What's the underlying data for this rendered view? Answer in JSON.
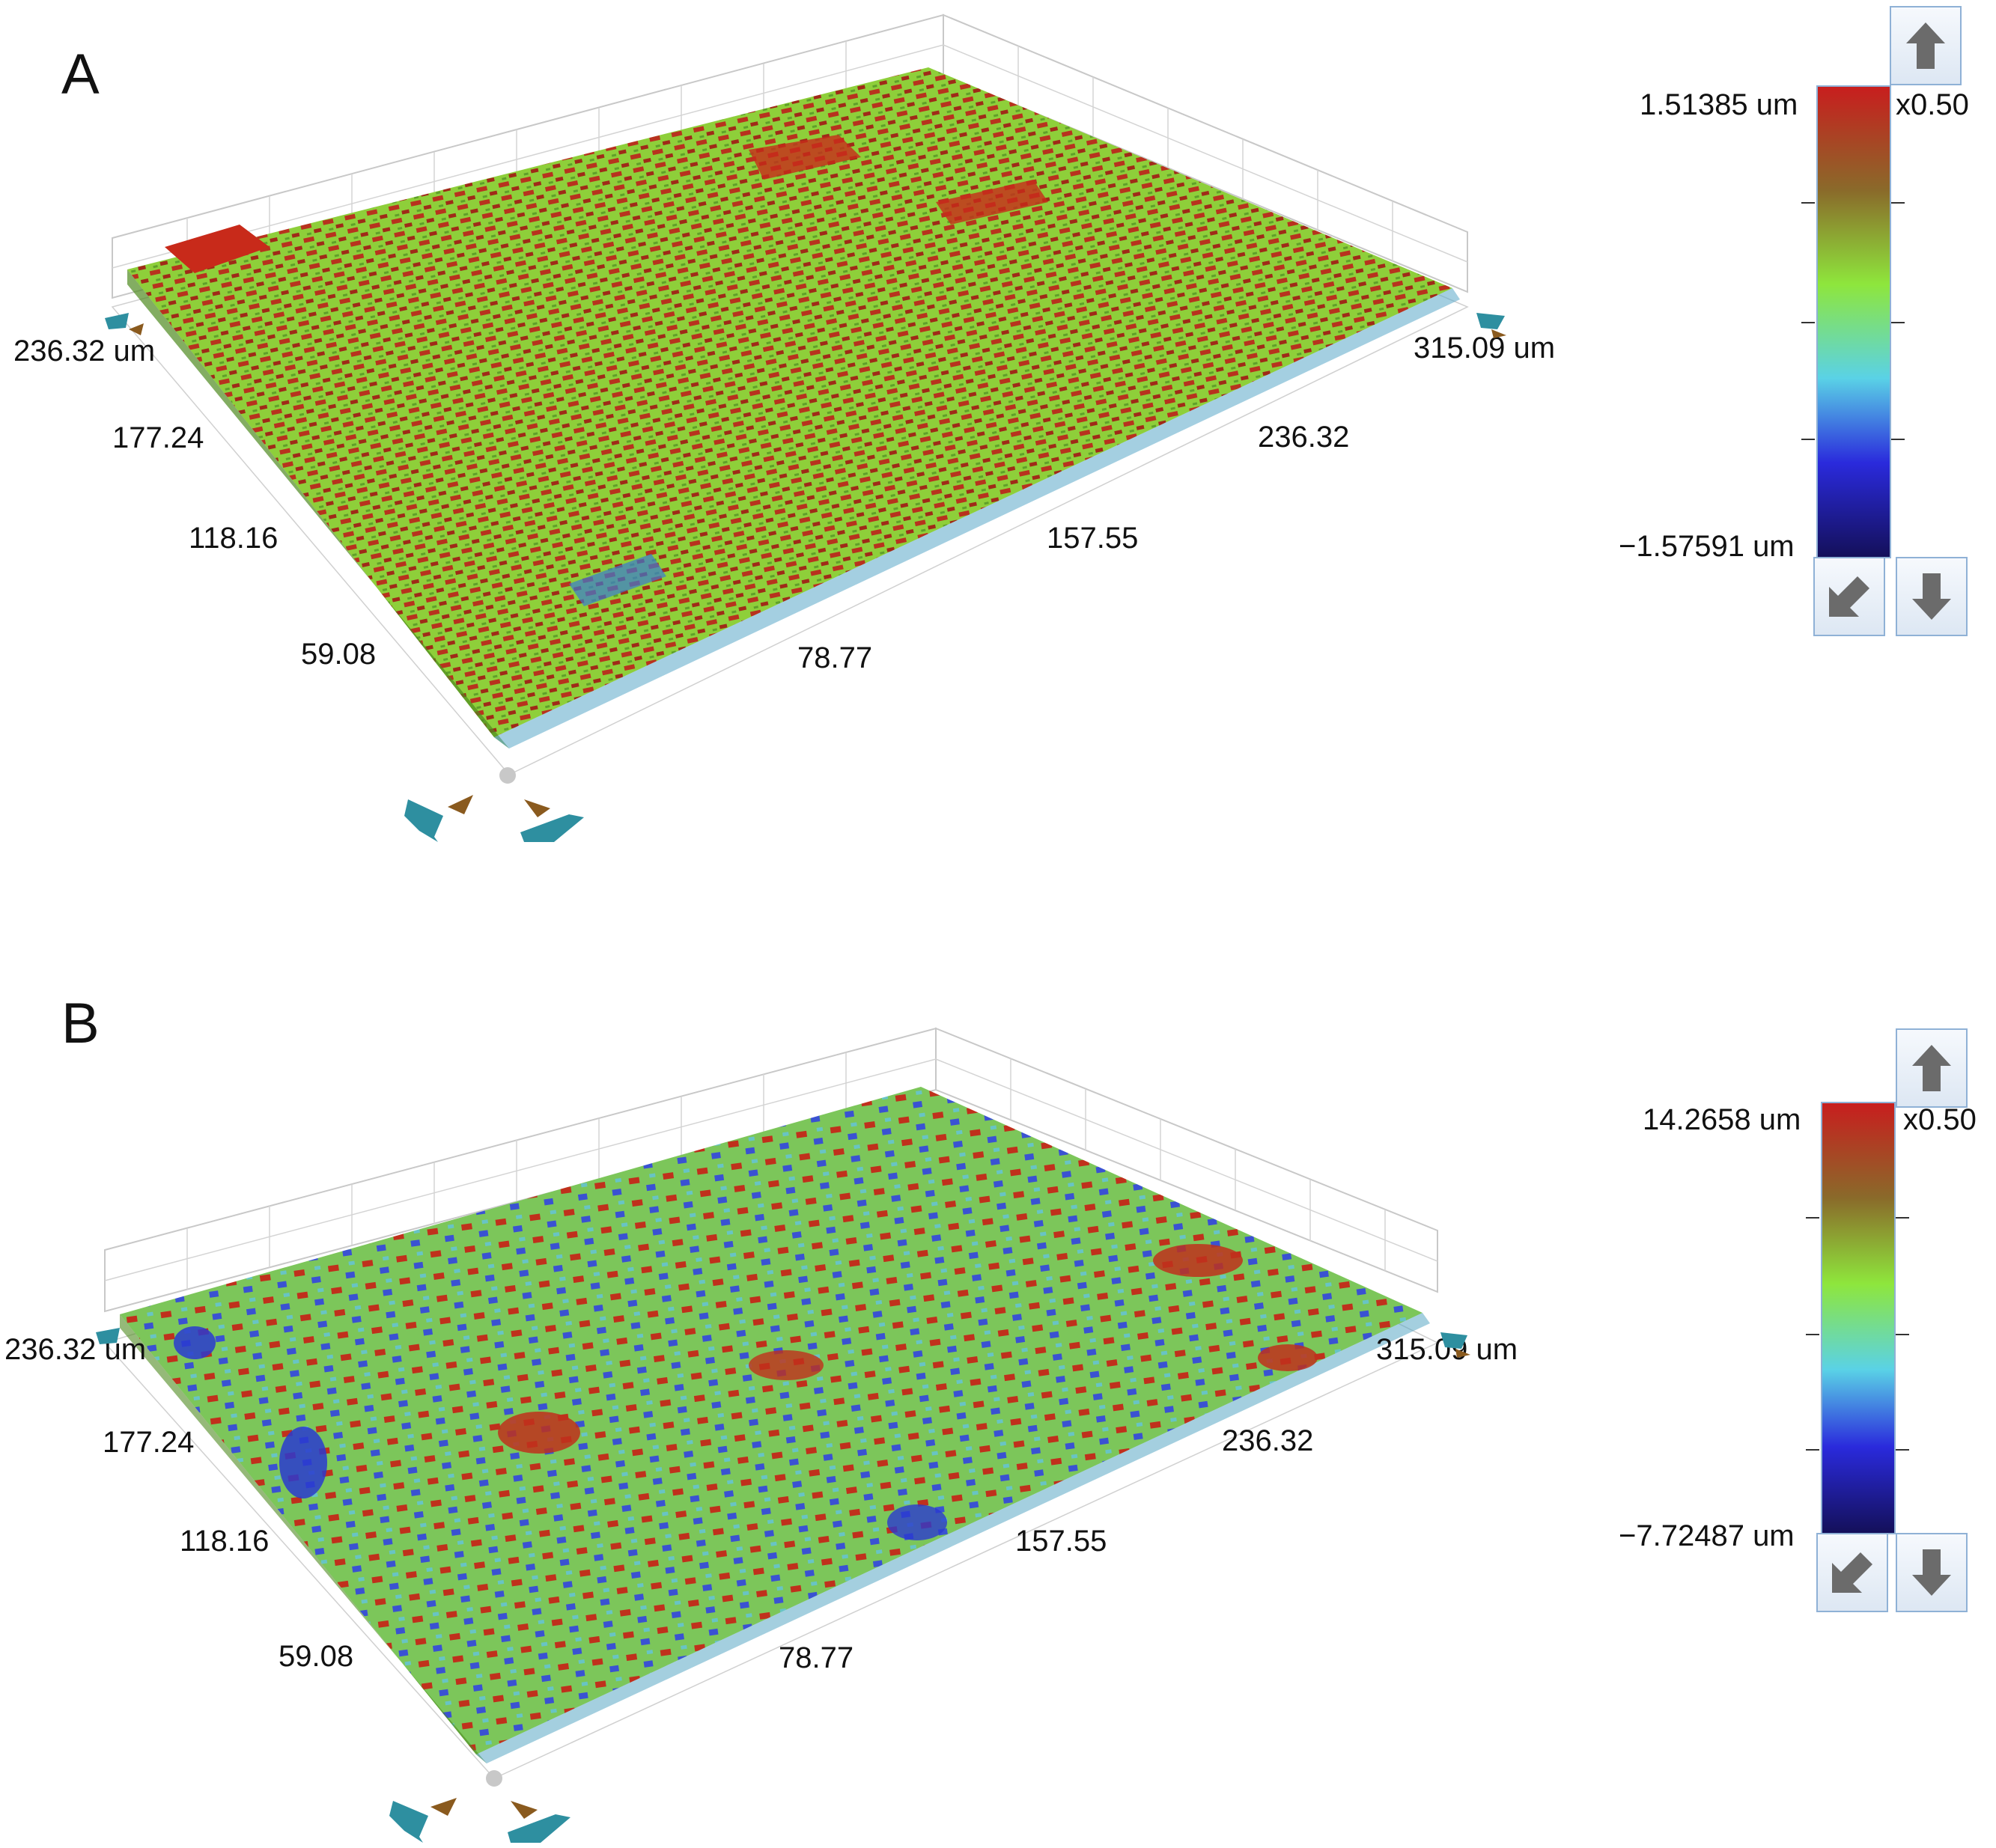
{
  "panels": [
    {
      "label": "A",
      "x_axis": {
        "end_label": "315.09 um",
        "ticks": [
          "78.77",
          "157.55",
          "236.32"
        ]
      },
      "y_axis": {
        "end_label": "236.32 um",
        "ticks": [
          "59.08",
          "118.16",
          "177.24"
        ]
      },
      "colorbar": {
        "max_label": "1.51385 um",
        "min_label": "−1.57591 um",
        "scale_label": "x0.50"
      },
      "surface_character": "dense peaks, mostly red/green"
    },
    {
      "label": "B",
      "x_axis": {
        "end_label": "315.09 um",
        "ticks": [
          "78.77",
          "157.55",
          "236.32"
        ]
      },
      "y_axis": {
        "end_label": "236.32 um",
        "ticks": [
          "59.08",
          "118.16",
          "177.24"
        ]
      },
      "colorbar": {
        "max_label": "14.2658 um",
        "min_label": "−7.72487 um",
        "scale_label": "x0.50"
      },
      "surface_character": "flatter, mottled green with blue pits and red patches"
    }
  ],
  "colors": {
    "high": "#c81e1e",
    "mid_high": "#7a9a2a",
    "mid": "#8ee63c",
    "mid_low": "#5ad2e6",
    "low": "#2a2adc",
    "lowest": "#14105a",
    "grid": "#c8c8c8",
    "handle_teal": "#2e8fa0",
    "handle_brown": "#8a5a1e"
  },
  "icons": {
    "up": "arrow-up-icon",
    "down": "arrow-down-icon",
    "reset": "arrow-down-left-icon",
    "rotate": "rotate-handle-icon"
  }
}
